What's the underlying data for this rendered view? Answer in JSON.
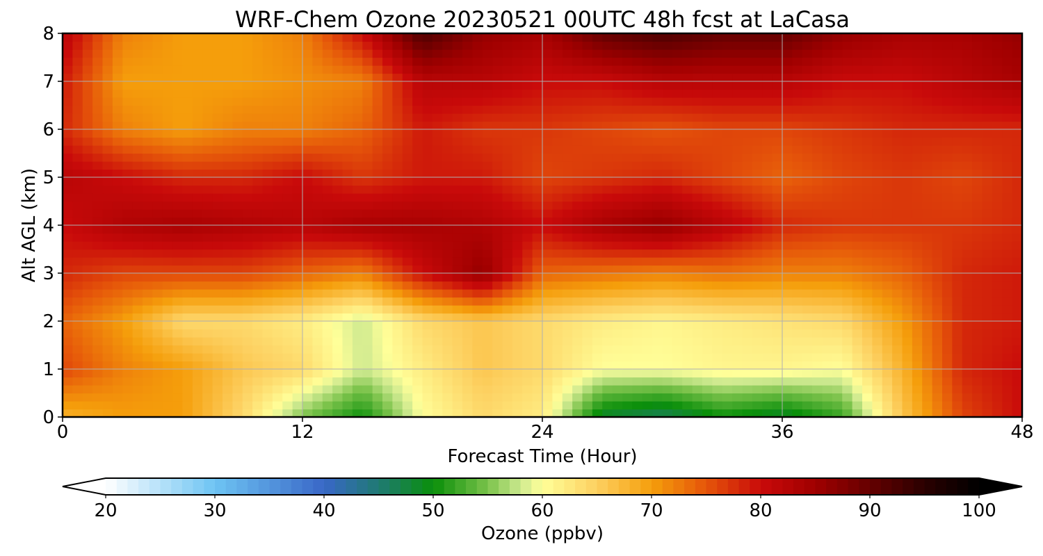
{
  "chart_data": {
    "type": "heatmap",
    "title": "WRF-Chem Ozone  20230521 00UTC 48h fcst at LaCasa",
    "xlabel": "Forecast Time (Hour)",
    "ylabel": "Alt AGL (km)",
    "xlim": [
      0,
      48
    ],
    "ylim": [
      0,
      8
    ],
    "xticks": [
      "0",
      "12",
      "24",
      "36",
      "48"
    ],
    "yticks": [
      "0",
      "1",
      "2",
      "3",
      "4",
      "5",
      "6",
      "7",
      "8"
    ],
    "grid": true,
    "x_hours": [
      0,
      3,
      6,
      9,
      12,
      15,
      18,
      21,
      24,
      27,
      30,
      33,
      36,
      39,
      42,
      45,
      48
    ],
    "y_km": [
      0,
      1,
      2,
      3,
      4,
      5,
      6,
      7,
      8
    ],
    "ozone_ppbv": [
      [
        68,
        70,
        70,
        64,
        55,
        50,
        60,
        64,
        62,
        48,
        46,
        50,
        48,
        52,
        66,
        76,
        80
      ],
      [
        76,
        72,
        70,
        66,
        64,
        58,
        62,
        66,
        64,
        60,
        60,
        61,
        61,
        60,
        68,
        78,
        80
      ],
      [
        74,
        70,
        64,
        64,
        62,
        58,
        64,
        66,
        64,
        62,
        61,
        62,
        63,
        64,
        70,
        78,
        79
      ],
      [
        78,
        76,
        76,
        76,
        74,
        72,
        80,
        86,
        74,
        73,
        72,
        73,
        72,
        72,
        74,
        78,
        79
      ],
      [
        80,
        83,
        84,
        83,
        82,
        84,
        84,
        83,
        80,
        84,
        86,
        82,
        78,
        77,
        77,
        77,
        78
      ],
      [
        82,
        80,
        78,
        78,
        80,
        77,
        79,
        79,
        76,
        77,
        78,
        76,
        74,
        76,
        77,
        76,
        78
      ],
      [
        78,
        72,
        70,
        72,
        72,
        74,
        79,
        77,
        77,
        76,
        75,
        76,
        76,
        77,
        78,
        78,
        78
      ],
      [
        79,
        70,
        70,
        70,
        71,
        72,
        82,
        82,
        80,
        80,
        82,
        82,
        82,
        80,
        80,
        82,
        84
      ],
      [
        82,
        72,
        70,
        70,
        72,
        80,
        92,
        86,
        84,
        90,
        92,
        90,
        90,
        86,
        84,
        84,
        86
      ]
    ],
    "colorbar": {
      "label": "Ozone  (ppbv)",
      "min": 20,
      "max": 100,
      "ticks": [
        "20",
        "30",
        "40",
        "50",
        "60",
        "70",
        "80",
        "90",
        "100"
      ],
      "extend": "both",
      "stops": [
        [
          20,
          "#ffffff"
        ],
        [
          30,
          "#6ec4f3"
        ],
        [
          40,
          "#3967c7"
        ],
        [
          45,
          "#1f7a73"
        ],
        [
          50,
          "#0a8f0a"
        ],
        [
          55,
          "#7ac24a"
        ],
        [
          58,
          "#cde98f"
        ],
        [
          60,
          "#ffff99"
        ],
        [
          65,
          "#fdd060"
        ],
        [
          70,
          "#f59e0b"
        ],
        [
          75,
          "#e5550a"
        ],
        [
          80,
          "#c90a0a"
        ],
        [
          85,
          "#a00000"
        ],
        [
          90,
          "#650000"
        ],
        [
          95,
          "#2a0000"
        ],
        [
          100,
          "#000000"
        ]
      ]
    }
  }
}
